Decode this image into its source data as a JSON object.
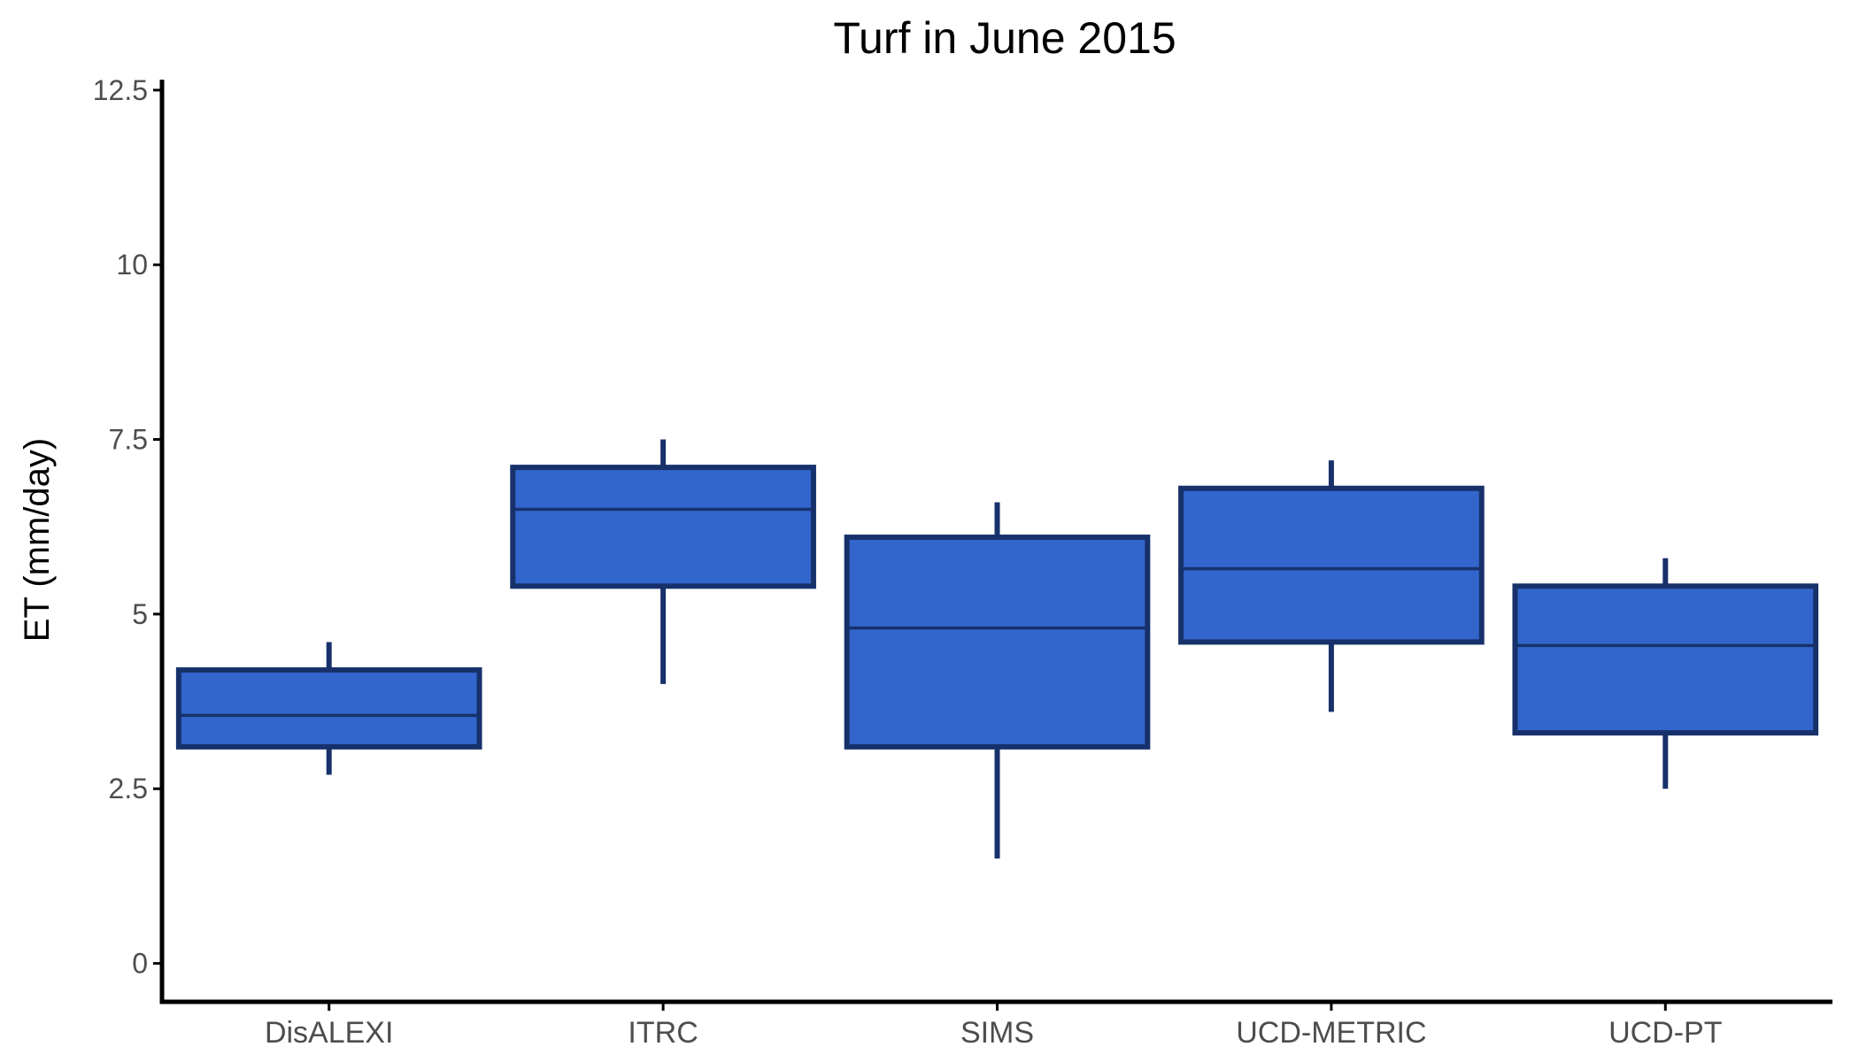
{
  "chart_data": {
    "type": "box",
    "title": "Turf in June 2015",
    "xlabel": "",
    "ylabel": "ET (mm/day)",
    "ylim": [
      -0.55,
      12.65
    ],
    "y_ticks": [
      0,
      2.5,
      5,
      7.5,
      10,
      12.5
    ],
    "y_tick_labels": [
      "0",
      "2.5",
      "5",
      "7.5",
      "10",
      "12.5"
    ],
    "grid": false,
    "legend": "none",
    "categories": [
      "DisALEXI",
      "ITRC",
      "SIMS",
      "UCD-METRIC",
      "UCD-PT"
    ],
    "boxes": [
      {
        "category": "DisALEXI",
        "whisker_low": 2.7,
        "q1": 3.1,
        "median": 3.55,
        "q3": 4.2,
        "whisker_high": 4.6
      },
      {
        "category": "ITRC",
        "whisker_low": 4.0,
        "q1": 5.4,
        "median": 6.5,
        "q3": 7.1,
        "whisker_high": 7.5
      },
      {
        "category": "SIMS",
        "whisker_low": 1.5,
        "q1": 3.1,
        "median": 4.8,
        "q3": 6.1,
        "whisker_high": 6.6
      },
      {
        "category": "UCD-METRIC",
        "whisker_low": 3.6,
        "q1": 4.6,
        "median": 5.65,
        "q3": 6.8,
        "whisker_high": 7.2
      },
      {
        "category": "UCD-PT",
        "whisker_low": 2.5,
        "q1": 3.3,
        "median": 4.55,
        "q3": 5.4,
        "whisker_high": 5.8
      }
    ],
    "colors": {
      "fill": "#3366cc",
      "outline": "#17316b",
      "axis": "#000000"
    }
  }
}
